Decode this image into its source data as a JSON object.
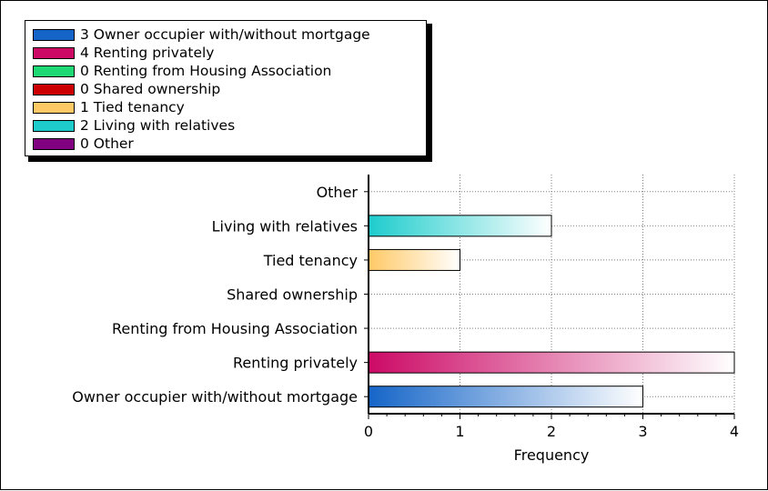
{
  "chart_data": {
    "type": "bar",
    "orientation": "horizontal",
    "categories": [
      "Owner occupier with/without mortgage",
      "Renting privately",
      "Renting from Housing Association",
      "Shared ownership",
      "Tied tenancy",
      "Living with relatives",
      "Other"
    ],
    "values": [
      3,
      4,
      0,
      0,
      1,
      2,
      0
    ],
    "colors": [
      "#1565c8",
      "#cc0a66",
      "#1ed873",
      "#cc0000",
      "#ffc966",
      "#1ecccc",
      "#800080"
    ],
    "legend": [
      {
        "label": "3 Owner occupier with/without mortgage",
        "color": "#1565c8"
      },
      {
        "label": "4 Renting privately",
        "color": "#cc0a66"
      },
      {
        "label": "0 Renting from Housing Association",
        "color": "#1ed873"
      },
      {
        "label": "0 Shared ownership",
        "color": "#cc0000"
      },
      {
        "label": "1 Tied tenancy",
        "color": "#ffc966"
      },
      {
        "label": "2 Living with relatives",
        "color": "#1ecccc"
      },
      {
        "label": "0 Other",
        "color": "#800080"
      }
    ],
    "xlabel": "Frequency",
    "ylabel": "",
    "xlim": [
      0,
      4
    ],
    "xticks": [
      0,
      1,
      2,
      3,
      4
    ],
    "grid": true,
    "legend_position": "top-left"
  }
}
